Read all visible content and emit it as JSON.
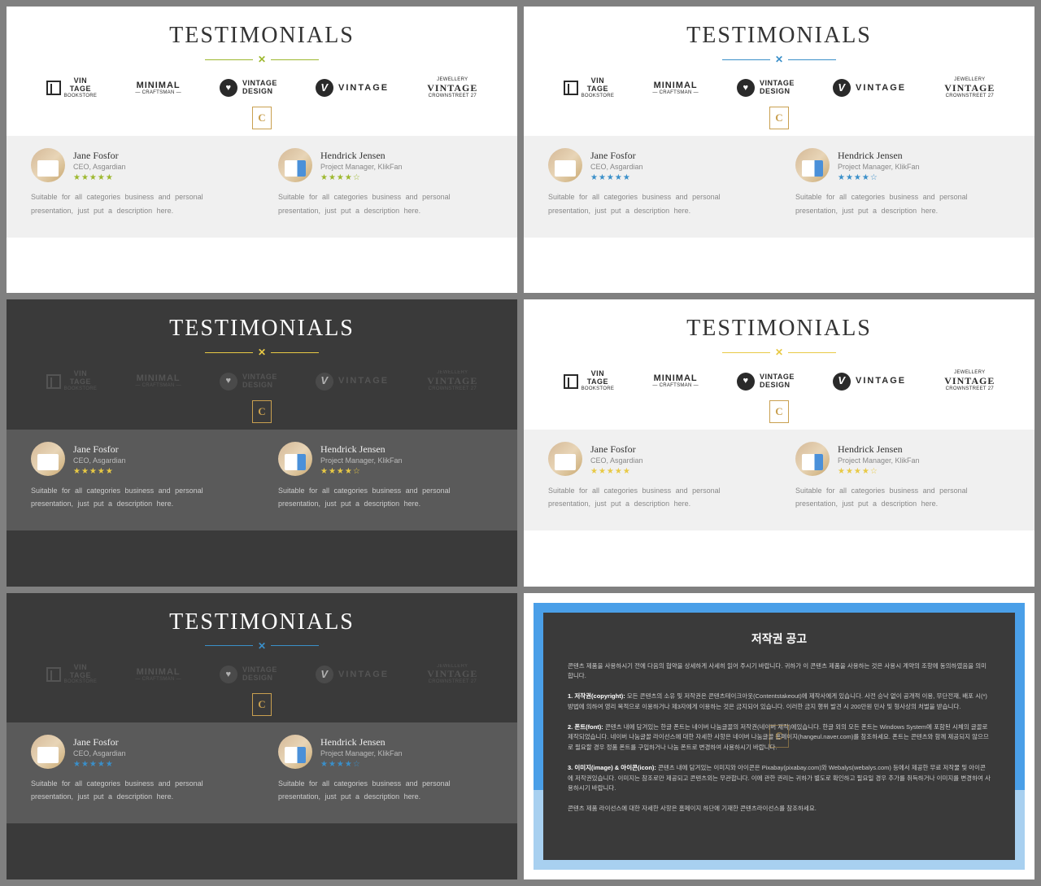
{
  "slides": [
    {
      "title": "TESTIMONIALS",
      "theme": "light",
      "accent": "#9db82e"
    },
    {
      "title": "TESTIMONIALS",
      "theme": "light",
      "accent": "#3a8fc9"
    },
    {
      "title": "TESTIMONIALS",
      "theme": "dark",
      "accent": "#e8c945"
    },
    {
      "title": "TESTIMONIALS",
      "theme": "light",
      "accent": "#e8c945"
    },
    {
      "title": "TESTIMONIALS",
      "theme": "dark",
      "accent": "#3a8fc9"
    }
  ],
  "logos": {
    "l1": {
      "line1": "VIN",
      "line2": "TAGE",
      "sub": "BOOKSTORE"
    },
    "l2": {
      "line1": "MINIMAL",
      "sub": "— CRAFTSMAN —"
    },
    "l3": {
      "line1": "VINTAGE",
      "line2": "DESIGN"
    },
    "l4": {
      "line1": "VINTAGE"
    },
    "l5": {
      "top": "JEWELLERY",
      "line1": "VINTAGE",
      "sub": "CROWNSTREET 27"
    }
  },
  "testimonials": [
    {
      "name": "Jane Fosfor",
      "role": "CEO, Asgardian",
      "stars_full": 5,
      "stars_empty": 0,
      "desc": "Suitable for all categories business and personal presentation, just put a description here."
    },
    {
      "name": "Hendrick Jensen",
      "role": "Project Manager, KlikFan",
      "stars_full": 4,
      "stars_empty": 1,
      "desc": "Suitable for all categories business and personal presentation, just put a description here."
    }
  ],
  "copyright": {
    "title": "저작권 공고",
    "p1": "콘텐츠 제품을 사용하시기 전에 다음의 협약을 상세하게 사세히 읽어 주시기 바랍니다. 귀하가 이 콘텐츠 제품을 사용하는 것은 사용시 계약의 조항에 동의하였음을 의미합니다.",
    "p2b": "1. 저작권(copyright):",
    "p2": " 모든 콘텐츠의 소유 및 저작권은 콘텐츠테이크아웃(Contentstakeout)에 제작사에게 있습니다. 사전 승낙 없이 공개적 이용, 무단전재, 배포 시(*) 방법에 의하여 영리 목적으로 이용하거나 제3자에게 이용하는 것은 금지되어 있습니다. 이러한 금지 행위 발견 시 200만원 민사 및 형사상의 처벌을 받습니다.",
    "p3b": "2. 폰트(font):",
    "p3": " 콘텐츠 내에 담겨있는 한글 폰트는 네이버 나눔글꼴의 저작권(네이버 제작)에있습니다. 한글 외의 모든 폰트는 Windows System에 포함된 시체의 글꼴로 제작되었습니다. 네이버 나눔글꼴 라이선스에 대한 자세한 사항은 네이버 나눔글꼴 홈페이지(hangeul.naver.com)를 참조하세요. 폰트는 콘텐츠와 함께 제공되지 않으므로 필요할 경우 정품 폰트를 구입하거나 나눔 폰트로 변경하여 사용하시기 바랍니다.",
    "p4b": "3. 이미지(image) & 아이콘(icon):",
    "p4": " 콘텐츠 내에 담겨있는 이미지와 아이콘은 Pixabay(pixabay.com)와 Webalys(webalys.com) 등에서 제공한 무료 저작물 및 아이콘에 저작권있습니다. 이미지는 참조로만 제공되고 콘텐츠외는 무관합니다. 이에 관한 권리는 귀하가 별도로 확인하고 필요일 경우 추가를 취득하거나 이미지를 변경하여 사용하시기 바랍니다.",
    "p5": "콘텐츠 제품 라이선스에 대한 자세한 사항은 홈페이지 하단에 기재한 콘텐츠라이선스를 참조하세요."
  },
  "colors": {
    "star_green": "#9db82e",
    "star_blue": "#3a8fc9",
    "star_yellow": "#e8c945"
  }
}
